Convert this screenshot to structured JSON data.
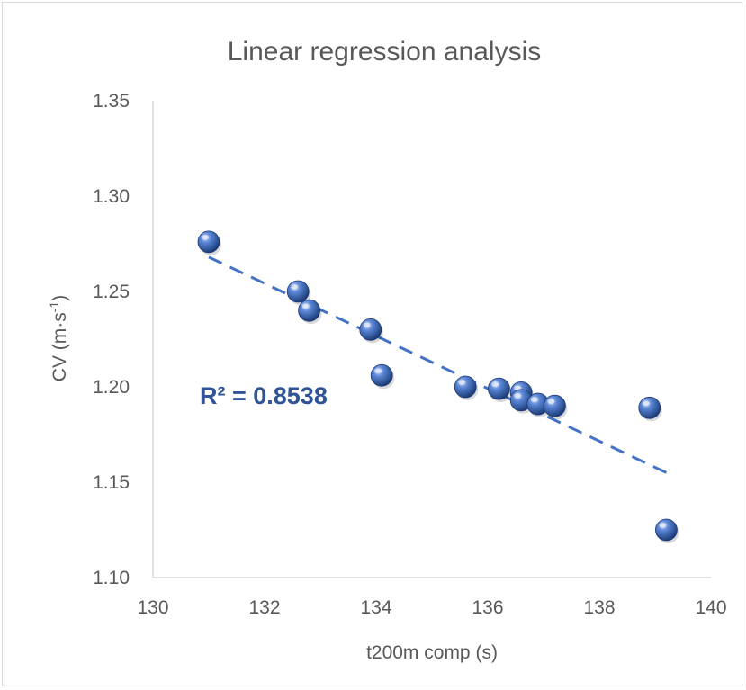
{
  "chart_data": {
    "type": "scatter",
    "title": "Linear regression analysis",
    "xlabel": "t200m comp (s)",
    "ylabel_main": "CV (m·s",
    "ylabel_sup": "-1",
    "ylabel_close": ")",
    "xlim": [
      130,
      140
    ],
    "ylim": [
      1.1,
      1.35
    ],
    "x_ticks": [
      "130",
      "132",
      "134",
      "136",
      "138",
      "140"
    ],
    "y_ticks": [
      "1.35",
      "1.30",
      "1.25",
      "1.20",
      "1.15",
      "1.10"
    ],
    "x_tick_values": [
      130,
      132,
      134,
      136,
      138,
      140
    ],
    "y_tick_values": [
      1.35,
      1.3,
      1.25,
      1.2,
      1.15,
      1.1
    ],
    "points": [
      {
        "x": 131.0,
        "y": 1.276
      },
      {
        "x": 132.6,
        "y": 1.25
      },
      {
        "x": 132.8,
        "y": 1.24
      },
      {
        "x": 133.9,
        "y": 1.23
      },
      {
        "x": 134.1,
        "y": 1.206
      },
      {
        "x": 135.6,
        "y": 1.2
      },
      {
        "x": 136.2,
        "y": 1.199
      },
      {
        "x": 136.6,
        "y": 1.197
      },
      {
        "x": 136.6,
        "y": 1.193
      },
      {
        "x": 136.9,
        "y": 1.191
      },
      {
        "x": 137.2,
        "y": 1.19
      },
      {
        "x": 138.9,
        "y": 1.189
      },
      {
        "x": 139.2,
        "y": 1.125
      }
    ],
    "trendline": {
      "style": "dashed",
      "x": [
        131.0,
        139.2
      ],
      "y": [
        1.268,
        1.155
      ],
      "r2_label": "R² = 0.8538"
    },
    "grid": false,
    "legend": "none",
    "colors": {
      "marker": "#4472c4",
      "marker_dark": "#1f3b78",
      "trendline": "#4472c4",
      "r2_text": "#2f5597",
      "axis": "#d9d9d9",
      "text": "#595959"
    }
  }
}
